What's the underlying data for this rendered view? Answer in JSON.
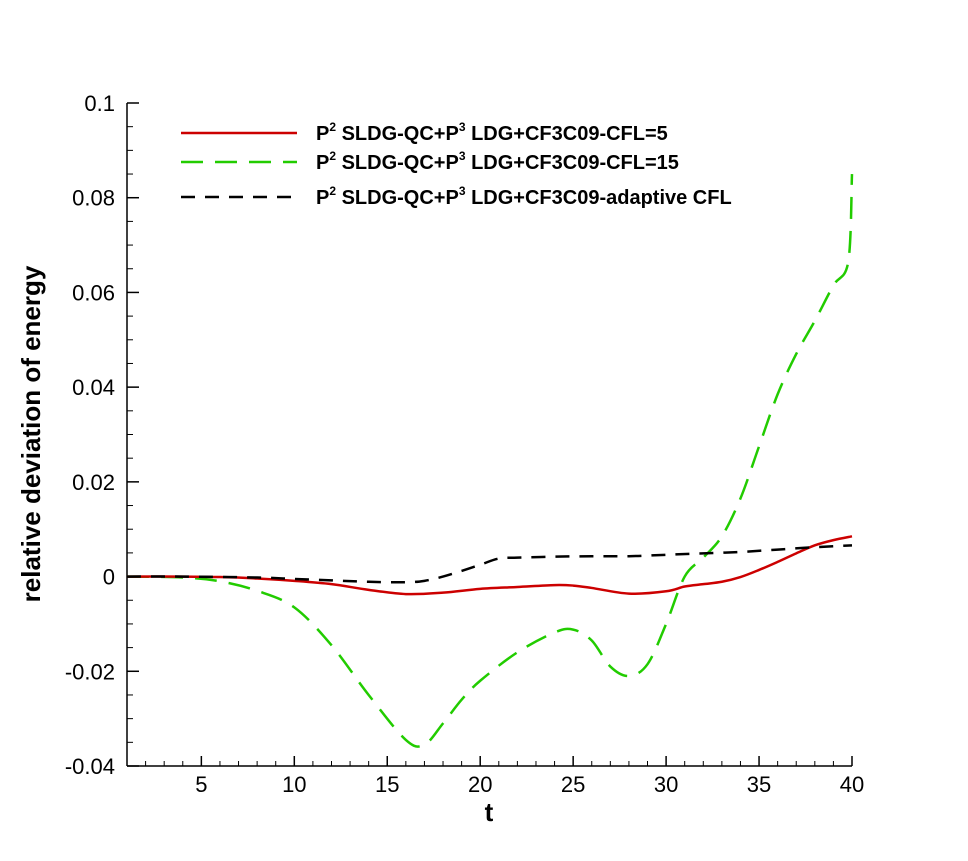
{
  "chart_data": {
    "type": "line",
    "xlabel": "t",
    "ylabel": "relative deviation of energy",
    "xlim": [
      1,
      40
    ],
    "ylim": [
      -0.04,
      0.1
    ],
    "x_ticks": [
      5,
      10,
      15,
      20,
      25,
      30,
      35,
      40
    ],
    "x_tick_labels": [
      "5",
      "10",
      "15",
      "20",
      "25",
      "30",
      "35",
      "40"
    ],
    "y_ticks": [
      -0.04,
      -0.02,
      0,
      0.02,
      0.04,
      0.06,
      0.08,
      0.1
    ],
    "y_tick_labels": [
      "-0.04",
      "-0.02",
      "0",
      "0.02",
      "0.04",
      "0.06",
      "0.08",
      "0.1"
    ],
    "grid": false,
    "legend_position": "top",
    "series": [
      {
        "name": "P2 SLDG-QC+P3 LDG+CF3C09-CFL=5",
        "legend": {
          "p1": "P",
          "s1": "2",
          "mid": " SLDG-QC+P",
          "s2": "3",
          "rest": " LDG+CF3C09-CFL=5"
        },
        "color": "#cc0000",
        "dash": "solid",
        "x": [
          1,
          4,
          6,
          8,
          10,
          12,
          14,
          16,
          18,
          20,
          22,
          24,
          25,
          26,
          28,
          30,
          31,
          32,
          33,
          34,
          35,
          36,
          37,
          38,
          39,
          40
        ],
        "y": [
          0,
          0,
          -0.0001,
          -0.0004,
          -0.0009,
          -0.0016,
          -0.0028,
          -0.0037,
          -0.0034,
          -0.0026,
          -0.0022,
          -0.0018,
          -0.0019,
          -0.0024,
          -0.0036,
          -0.0031,
          -0.0021,
          -0.0016,
          -0.0011,
          -0.0001,
          0.0014,
          0.0031,
          0.0049,
          0.0066,
          0.0077,
          0.0085
        ]
      },
      {
        "name": "P2 SLDG-QC+P3 LDG+CF3C09-CFL=15",
        "legend": {
          "p1": "P",
          "s1": "2",
          "mid": " SLDG-QC+P",
          "s2": "3",
          "rest": " LDG+CF3C09-CFL=15"
        },
        "color": "#22cc00",
        "dash": "long-dash",
        "x": [
          1,
          4,
          6,
          8,
          10,
          12,
          14,
          16,
          17,
          18,
          19,
          20,
          22,
          24,
          25,
          26,
          27,
          28,
          29,
          30,
          31,
          32,
          33,
          34,
          35,
          36,
          37,
          38,
          39,
          39.8,
          40
        ],
        "y": [
          0,
          -0.0002,
          -0.001,
          -0.003,
          -0.0065,
          -0.0145,
          -0.025,
          -0.0345,
          -0.0355,
          -0.031,
          -0.026,
          -0.022,
          -0.016,
          -0.0118,
          -0.0112,
          -0.0135,
          -0.019,
          -0.021,
          -0.0185,
          -0.01,
          0.0,
          0.004,
          0.0085,
          0.0165,
          0.0275,
          0.0385,
          0.047,
          0.054,
          0.0615,
          0.0665,
          0.085
        ]
      },
      {
        "name": "P2 SLDG-QC+P3 LDG+CF3C09-adaptive CFL",
        "legend": {
          "p1": "P",
          "s1": "2",
          "mid": " SLDG-QC+P",
          "s2": "3",
          "rest": " LDG+CF3C09-adaptive CFL"
        },
        "color": "#000000",
        "dash": "dash",
        "x": [
          1,
          4,
          8,
          10,
          12,
          14,
          16,
          17,
          18,
          19,
          20,
          21,
          22,
          24,
          26,
          28,
          30,
          32,
          34,
          36,
          38,
          40
        ],
        "y": [
          0,
          0,
          -0.0002,
          -0.0005,
          -0.0008,
          -0.0011,
          -0.0012,
          -0.0009,
          0.0,
          0.0012,
          0.0025,
          0.0038,
          0.004,
          0.0042,
          0.0043,
          0.0043,
          0.0046,
          0.0049,
          0.0052,
          0.0057,
          0.0062,
          0.0066
        ]
      }
    ]
  }
}
